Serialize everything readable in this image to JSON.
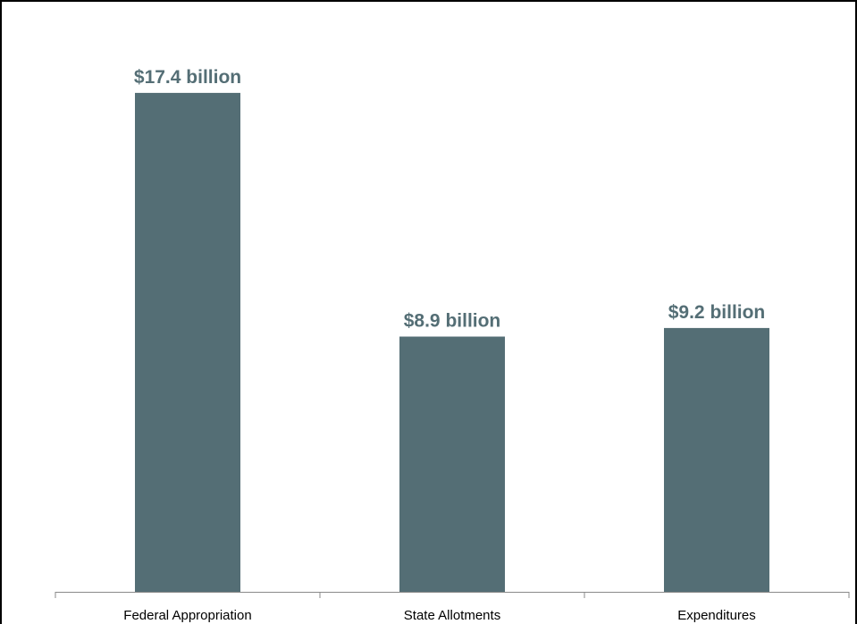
{
  "chart_data": {
    "type": "bar",
    "title": "",
    "xlabel": "",
    "ylabel": "",
    "categories": [
      "Federal Appropriation",
      "State Allotments",
      "Expenditures"
    ],
    "values": [
      17.4,
      8.9,
      9.2
    ],
    "data_labels": [
      "$17.4 billion",
      "$8.9 billion",
      "$9.2 billion"
    ],
    "ylim": [
      0,
      18.3
    ],
    "grid": false,
    "legend": "none"
  },
  "colors": {
    "bar": "#546e75",
    "label": "#546e75",
    "axis": "#8a8a8a",
    "frame": "#000000"
  }
}
